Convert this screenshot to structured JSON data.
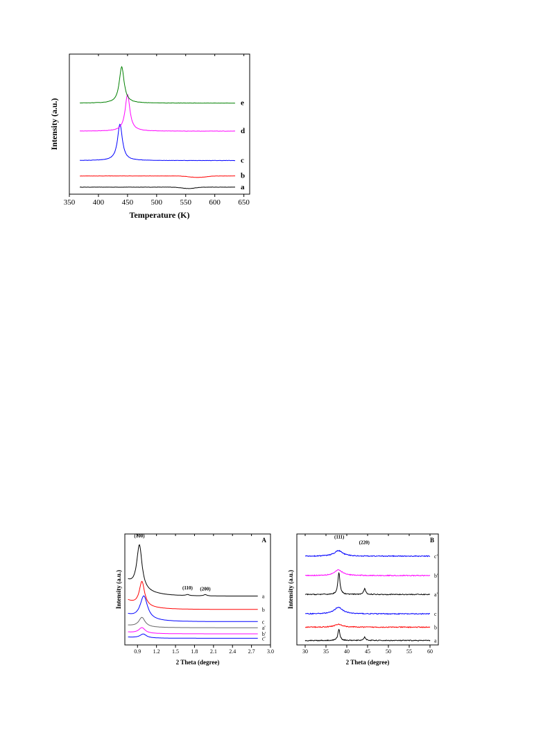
{
  "chart_data": [
    {
      "type": "line",
      "title": "",
      "xlabel": "Temperature (K)",
      "ylabel": "Intensity (a.u.)",
      "xlim": [
        350,
        660
      ],
      "xticks": [
        "350",
        "400",
        "450",
        "500",
        "550",
        "600",
        "650"
      ],
      "x_range": [
        368,
        635
      ],
      "series": [
        {
          "name": "a",
          "color": "#000000",
          "baseline": 0.05,
          "peaks": [],
          "dips": [
            {
              "x": 555,
              "depth": 0.01,
              "width": 15
            }
          ]
        },
        {
          "name": "b",
          "color": "#ff0000",
          "baseline": 0.13,
          "peaks": [],
          "dips": [
            {
              "x": 570,
              "depth": 0.01,
              "width": 20
            }
          ]
        },
        {
          "name": "c",
          "color": "#0000ff",
          "baseline": 0.24,
          "peaks": [
            {
              "x": 437,
              "height": 0.26,
              "width": 5
            }
          ],
          "dips": []
        },
        {
          "name": "d",
          "color": "#ff00ff",
          "baseline": 0.45,
          "peaks": [
            {
              "x": 450,
              "height": 0.26,
              "width": 5
            }
          ],
          "dips": []
        },
        {
          "name": "e",
          "color": "#008000",
          "baseline": 0.65,
          "peaks": [
            {
              "x": 440,
              "height": 0.26,
              "width": 5
            }
          ],
          "dips": []
        }
      ]
    },
    {
      "type": "line",
      "panel_label": "A",
      "title": "",
      "xlabel": "2 Theta (degree)",
      "ylabel": "Intensity (a.u.)",
      "xlim": [
        0.7,
        3.0
      ],
      "xticks": [
        "0.9",
        "1.2",
        "1.5",
        "1.8",
        "2.1",
        "2.4",
        "2.7",
        "3.0"
      ],
      "x_range": [
        0.75,
        2.8
      ],
      "annotations": [
        {
          "text": "(100)",
          "x": 0.93,
          "y": 0.97
        },
        {
          "text": "(110)",
          "x": 1.69,
          "y": 0.5
        },
        {
          "text": "(200)",
          "x": 1.97,
          "y": 0.49
        }
      ],
      "series": [
        {
          "name": "a",
          "color": "#000000",
          "baseline": 0.44,
          "peaks": [
            {
              "x": 0.93,
              "height": 0.4,
              "width": 0.05
            },
            {
              "x": 1.69,
              "height": 0.01,
              "width": 0.03
            },
            {
              "x": 1.97,
              "height": 0.012,
              "width": 0.03
            }
          ],
          "tail": 0.13
        },
        {
          "name": "b",
          "color": "#ff0000",
          "baseline": 0.32,
          "peaks": [
            {
              "x": 0.97,
              "height": 0.22,
              "width": 0.05
            }
          ],
          "tail": 0.08
        },
        {
          "name": "c",
          "color": "#0000ff",
          "baseline": 0.21,
          "peaks": [
            {
              "x": 1.0,
              "height": 0.21,
              "width": 0.07
            }
          ],
          "tail": 0.06
        },
        {
          "name": "a'",
          "color": "#666666",
          "baseline": 0.155,
          "peaks": [
            {
              "x": 0.97,
              "height": 0.085,
              "width": 0.06
            }
          ],
          "tail": 0.02
        },
        {
          "name": "b'",
          "color": "#ff00ff",
          "baseline": 0.1,
          "peaks": [
            {
              "x": 0.97,
              "height": 0.05,
              "width": 0.06
            }
          ],
          "tail": 0.015
        },
        {
          "name": "c'",
          "color": "#0000ff",
          "baseline": 0.06,
          "peaks": [
            {
              "x": 0.99,
              "height": 0.035,
              "width": 0.06
            }
          ],
          "tail": 0.01
        }
      ]
    },
    {
      "type": "line",
      "panel_label": "B",
      "title": "",
      "xlabel": "2 Theta (degree)",
      "ylabel": "Intensity (a.u.)",
      "xlim": [
        28,
        62
      ],
      "xticks": [
        "30",
        "35",
        "40",
        "45",
        "50",
        "55",
        "60"
      ],
      "x_range": [
        30,
        60
      ],
      "annotations": [
        {
          "text": "(111)",
          "x": 38.2,
          "y": 0.96
        },
        {
          "text": "(220)",
          "x": 44.2,
          "y": 0.91
        }
      ],
      "series": [
        {
          "name": "a",
          "color": "#000000",
          "baseline": 0.04,
          "peaks": [
            {
              "x": 38.1,
              "height": 0.1,
              "width": 0.3
            },
            {
              "x": 44.3,
              "height": 0.03,
              "width": 0.3
            }
          ]
        },
        {
          "name": "b",
          "color": "#ff0000",
          "baseline": 0.16,
          "peaks": [
            {
              "x": 38.0,
              "height": 0.025,
              "width": 1.2
            }
          ]
        },
        {
          "name": "c",
          "color": "#0000ff",
          "baseline": 0.28,
          "peaks": [
            {
              "x": 38.0,
              "height": 0.06,
              "width": 1.2
            }
          ]
        },
        {
          "name": "a'",
          "color": "#000000",
          "baseline": 0.455,
          "peaks": [
            {
              "x": 38.1,
              "height": 0.2,
              "width": 0.3
            },
            {
              "x": 44.3,
              "height": 0.05,
              "width": 0.3
            }
          ]
        },
        {
          "name": "b'",
          "color": "#ff00ff",
          "baseline": 0.625,
          "peaks": [
            {
              "x": 38.0,
              "height": 0.05,
              "width": 1.2
            }
          ]
        },
        {
          "name": "c'",
          "color": "#0000ff",
          "baseline": 0.8,
          "peaks": [
            {
              "x": 38.0,
              "height": 0.05,
              "width": 1.2
            }
          ]
        }
      ]
    }
  ]
}
